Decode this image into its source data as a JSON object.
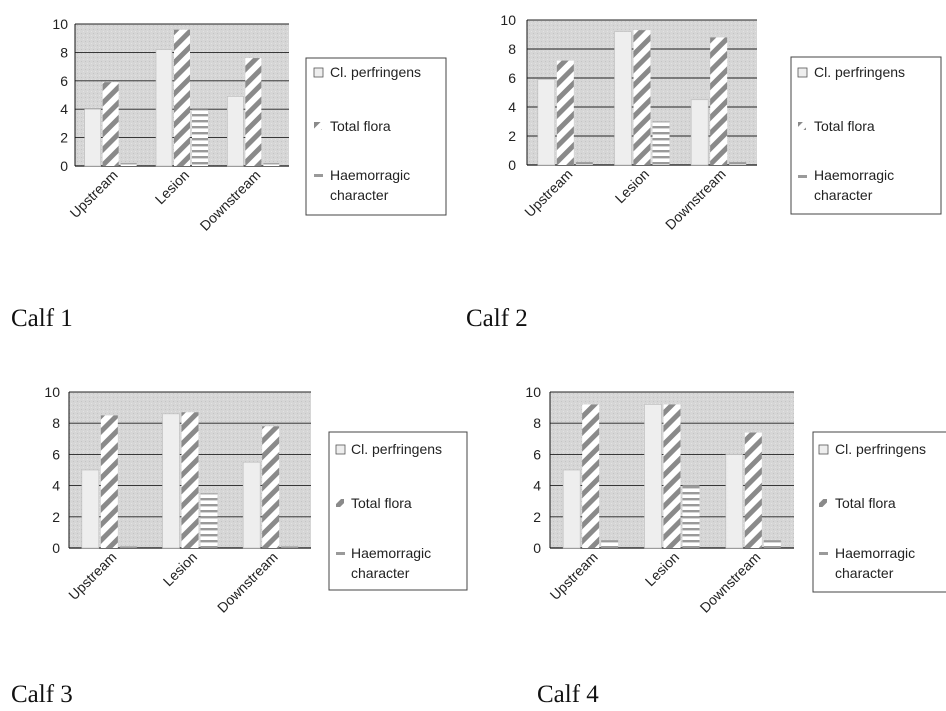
{
  "chart_data": [
    {
      "type": "bar",
      "caption": "Calf 1",
      "categories": [
        "Upstream",
        "Lesion",
        "Downstream"
      ],
      "series": [
        {
          "name": "Cl. perfringens",
          "values": [
            4.0,
            8.2,
            4.9
          ]
        },
        {
          "name": "Total flora",
          "values": [
            5.9,
            9.6,
            7.6
          ]
        },
        {
          "name": "Haemorragic character",
          "values": [
            0.2,
            4.0,
            0.2
          ]
        }
      ],
      "ylim": [
        0,
        10
      ],
      "yticks": [
        0,
        2,
        4,
        6,
        8,
        10
      ],
      "grid": true,
      "legend_position": "right"
    },
    {
      "type": "bar",
      "caption": "Calf 2",
      "categories": [
        "Upstream",
        "Lesion",
        "Downstream"
      ],
      "series": [
        {
          "name": "Cl. perfringens",
          "values": [
            5.9,
            9.2,
            4.5
          ]
        },
        {
          "name": "Total flora",
          "values": [
            7.2,
            9.3,
            8.8
          ]
        },
        {
          "name": "Haemorragic character",
          "values": [
            0.2,
            3.0,
            0.2
          ]
        }
      ],
      "ylim": [
        0,
        10
      ],
      "yticks": [
        0,
        2,
        4,
        6,
        8,
        10
      ],
      "grid": true,
      "legend_position": "right"
    },
    {
      "type": "bar",
      "caption": "Calf 3",
      "categories": [
        "Upstream",
        "Lesion",
        "Downstream"
      ],
      "series": [
        {
          "name": "Cl. perfringens",
          "values": [
            5.0,
            8.6,
            5.5
          ]
        },
        {
          "name": "Total flora",
          "values": [
            8.5,
            8.7,
            7.8
          ]
        },
        {
          "name": "Haemorragic character",
          "values": [
            0.1,
            3.5,
            0.1
          ]
        }
      ],
      "ylim": [
        0,
        10
      ],
      "yticks": [
        0,
        2,
        4,
        6,
        8,
        10
      ],
      "grid": true,
      "legend_position": "right"
    },
    {
      "type": "bar",
      "caption": "Calf 4",
      "categories": [
        "Upstream",
        "Lesion",
        "Downstream"
      ],
      "series": [
        {
          "name": "Cl. perfringens",
          "values": [
            5.0,
            9.2,
            6.0
          ]
        },
        {
          "name": "Total flora",
          "values": [
            9.2,
            9.2,
            7.4
          ]
        },
        {
          "name": "Haemorragic character",
          "values": [
            0.5,
            4.0,
            0.5
          ]
        }
      ],
      "ylim": [
        0,
        10
      ],
      "yticks": [
        0,
        2,
        4,
        6,
        8,
        10
      ],
      "grid": true,
      "legend_position": "right"
    }
  ],
  "colors": {
    "plot_bg": "#d6d6d6",
    "gridline": "#222222",
    "bar_solid": "#eeeeee",
    "stripe_light": "#ffffff",
    "stripe_dark": "#8a8a8a",
    "hstripe_dark": "#9a9a9a"
  }
}
